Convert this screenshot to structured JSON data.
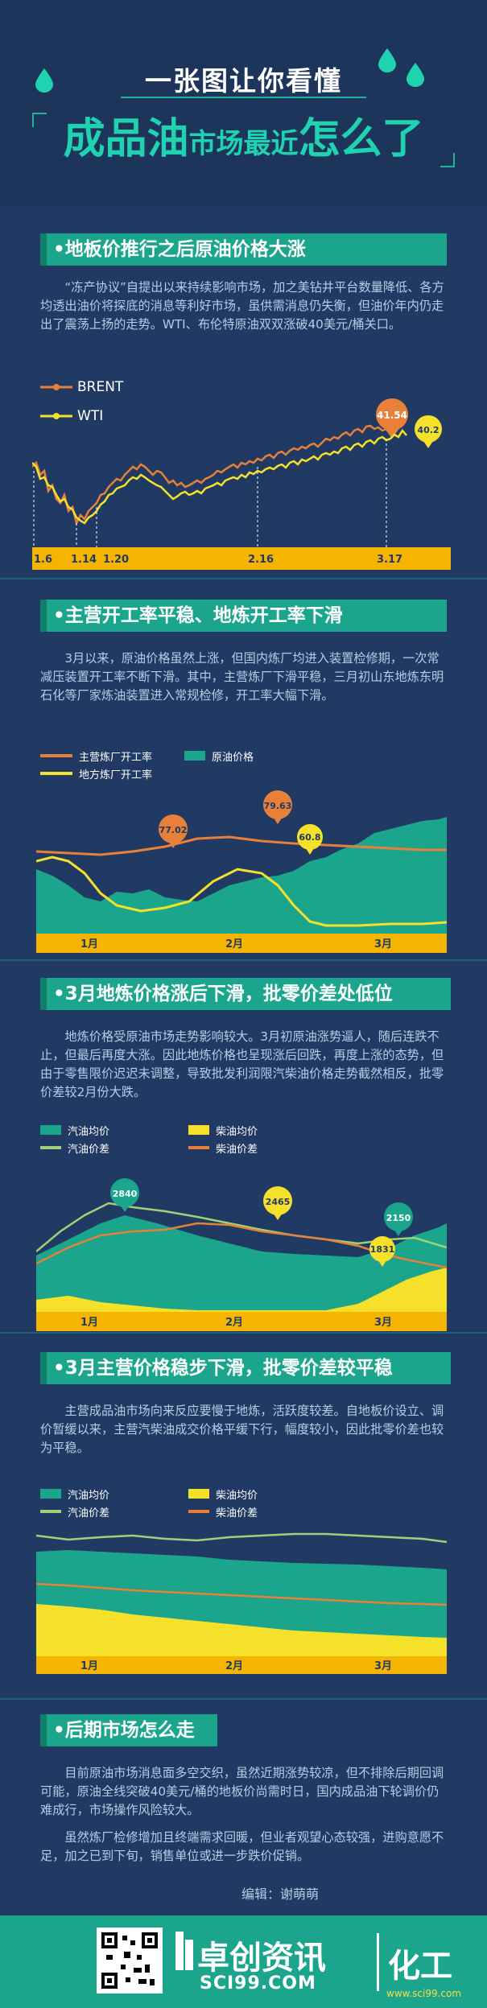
{
  "header": {
    "subtitle": "一张图让你看懂",
    "title_part1": "成品油",
    "title_part2": "市场最近",
    "title_part3": "怎么了"
  },
  "section1": {
    "heading": "•地板价推行之后原油价格大涨",
    "text": "“冻产协议”自提出以来持续影响市场，加之美钻井平台数量降低、各方均透出油价将探底的消息等利好市场，虽供需消息仍失衡，但油价年内仍走出了震荡上扬的走势。WTI、布伦特原油双双涨破40美元/桶关口。",
    "legend": [
      {
        "name": "BRENT",
        "color": "#e8803a"
      },
      {
        "name": "WTI",
        "color": "#f5e12a"
      }
    ],
    "callouts": [
      "41.54",
      "40.2"
    ],
    "dates": [
      "1.6",
      "1.14",
      "1.20",
      "2.16",
      "3.17"
    ]
  },
  "section2": {
    "heading": "•主营开工率平稳、地炼开工率下滑",
    "text": "3月以来，原油价格虽然上涨，但国内炼厂均进入装置检修期，一次常减压装置开工率不断下滑。其中，主营炼厂下滑平稳，三月初山东地炼东明石化等厂家炼油装置进入常规检修，开工率大幅下滑。",
    "legend": [
      "主营炼厂开工率",
      "地方炼厂开工率",
      "原油价格"
    ],
    "callouts": [
      "77.02",
      "79.63",
      "60.8"
    ],
    "months": [
      "1月",
      "2月",
      "3月"
    ]
  },
  "section3": {
    "heading": "•3月地炼价格涨后下滑，批零价差处低位",
    "text": "地炼价格受原油市场走势影响较大。3月初原油涨势逼人，随后连跌不止，但最后再度大涨。因此地炼价格也呈现涨后回跌，再度上涨的态势，但由于零售限价迟迟未调整，导致批发利润限汽柴油价格走势截然相反，批零价差较2月份大跌。",
    "legend": [
      "汽油均价",
      "柴油均价",
      "汽油价差",
      "柴油价差"
    ],
    "callouts": [
      "2840",
      "2465",
      "2150",
      "1831"
    ],
    "months": [
      "1月",
      "2月",
      "3月"
    ]
  },
  "section4": {
    "heading": "•3月主营价格稳步下滑，批零价差较平稳",
    "text": "主营成品油市场向来反应要慢于地炼，活跃度较差。自地板价设立、调价暂缓以来，主营汽柴油成交价格平缓下行，幅度较小，因此批零价差也较为平稳。",
    "legend": [
      "汽油均价",
      "柴油均价",
      "汽油价差",
      "柴油价差"
    ],
    "months": [
      "1月",
      "2月",
      "3月"
    ]
  },
  "section5": {
    "heading": "•后期市场怎么走",
    "text1": "目前原油市场消息面多空交织，虽然近期涨势较凉，但不排除后期回调可能，原油全线突破40美元/桶的地板价尚需时日，国内成品油下轮调价仍难成行，市场操作风险较大。",
    "text2": "虽然炼厂检修增加且终端需求回暖，但业者观望心态较强，进购意愿不足，加之已到下旬，销售单位或进一步跌价促销。"
  },
  "editor": "编辑：谢萌萌",
  "footer": {
    "brand": "卓创资讯",
    "url": "SCI99.COM",
    "category": "化工",
    "watermark": "www.sci99.com"
  },
  "colors": {
    "background": "#213a63",
    "teal": "#1aa58c",
    "orange": "#e8803a",
    "yellow": "#f5e12a"
  }
}
